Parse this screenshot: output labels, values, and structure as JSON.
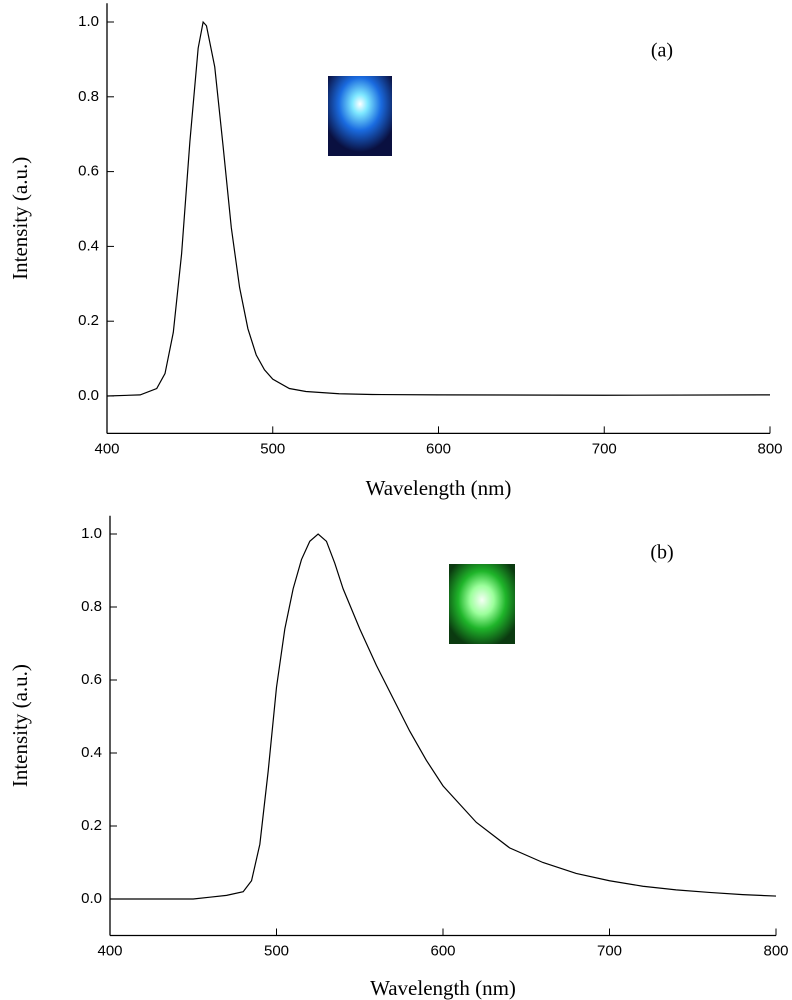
{
  "chart_data": [
    {
      "type": "line",
      "annotation": "(a)",
      "xlabel": "Wavelength (nm)",
      "ylabel": "Intensity (a.u.)",
      "xlim": [
        400,
        800
      ],
      "ylim": [
        -0.1,
        1.05
      ],
      "xticks": [
        400,
        500,
        600,
        700,
        800
      ],
      "yticks": [
        {
          "value": 0,
          "label": "0.0"
        },
        0.2,
        0.4,
        0.6,
        0.8,
        {
          "value": 1,
          "label": "1.0"
        }
      ],
      "x": [
        400,
        420,
        430,
        435,
        440,
        445,
        450,
        455,
        458,
        460,
        465,
        470,
        475,
        480,
        485,
        490,
        495,
        500,
        510,
        520,
        540,
        560,
        600,
        700,
        800
      ],
      "series": [
        {
          "color": "#000000",
          "values": [
            0,
            0.003,
            0.02,
            0.06,
            0.17,
            0.38,
            0.68,
            0.93,
            1.0,
            0.99,
            0.88,
            0.67,
            0.45,
            0.29,
            0.18,
            0.11,
            0.07,
            0.045,
            0.02,
            0.012,
            0.006,
            0.004,
            0.003,
            0.002,
            0.003
          ]
        }
      ]
    },
    {
      "type": "line",
      "annotation": "(b)",
      "xlabel": "Wavelength (nm)",
      "ylabel": "Intensity (a.u.)",
      "xlim": [
        400,
        800
      ],
      "ylim": [
        -0.1,
        1.05
      ],
      "xticks": [
        400,
        500,
        600,
        700,
        800
      ],
      "yticks": [
        {
          "value": 0,
          "label": "0.0"
        },
        0.2,
        0.4,
        0.6,
        0.8,
        {
          "value": 1,
          "label": "1.0"
        }
      ],
      "x": [
        400,
        450,
        460,
        470,
        480,
        485,
        490,
        495,
        500,
        505,
        510,
        515,
        520,
        525,
        530,
        535,
        540,
        550,
        560,
        570,
        580,
        590,
        600,
        620,
        640,
        660,
        680,
        700,
        720,
        740,
        760,
        780,
        800
      ],
      "series": [
        {
          "color": "#000000",
          "values": [
            0,
            0,
            0.005,
            0.01,
            0.02,
            0.05,
            0.15,
            0.35,
            0.58,
            0.74,
            0.85,
            0.93,
            0.98,
            1.0,
            0.98,
            0.92,
            0.85,
            0.74,
            0.64,
            0.55,
            0.46,
            0.38,
            0.31,
            0.21,
            0.14,
            0.1,
            0.07,
            0.05,
            0.035,
            0.025,
            0.018,
            0.012,
            0.008
          ]
        }
      ]
    }
  ]
}
